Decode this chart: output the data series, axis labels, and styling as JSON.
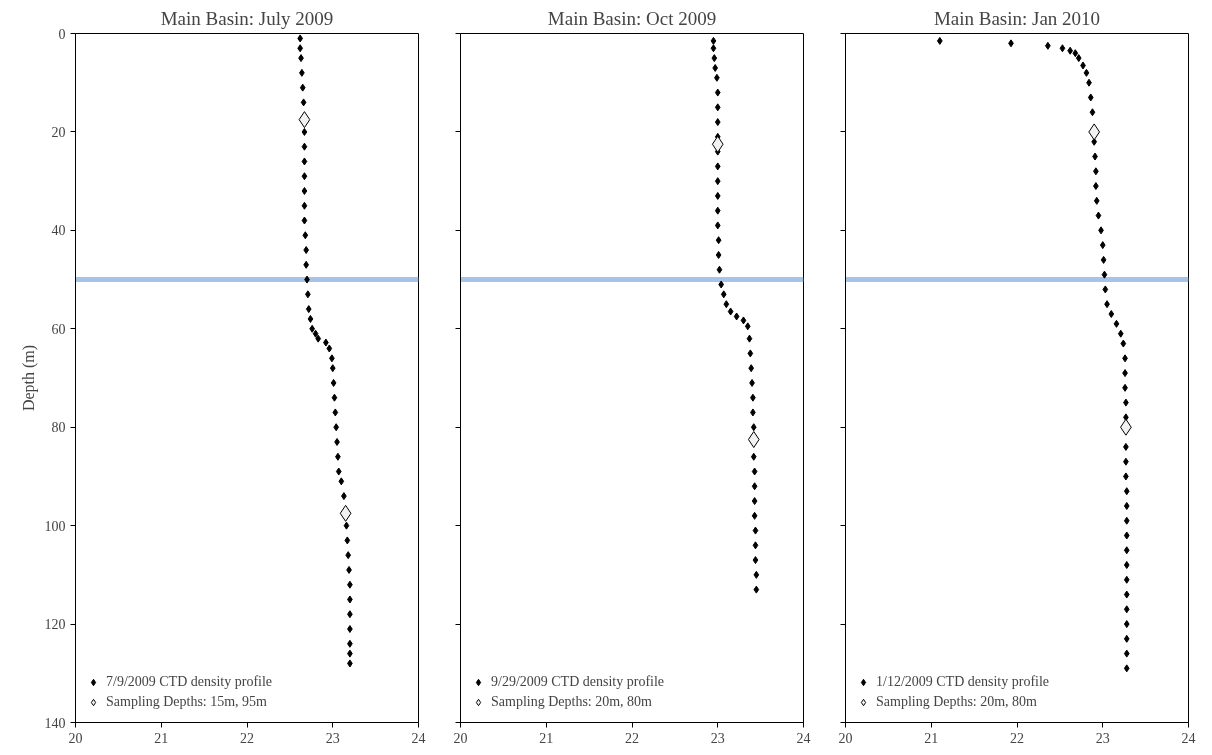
{
  "chart_data": [
    {
      "type": "scatter",
      "title": "Main Basin: July 2009",
      "ylabel": "Depth (m)",
      "xlim": [
        20,
        24
      ],
      "ylim": [
        140,
        0
      ],
      "xticks": [
        20,
        21,
        22,
        23,
        24
      ],
      "yticks": [
        0,
        20,
        40,
        60,
        80,
        100,
        120,
        140
      ],
      "grid": false,
      "legend": "bottom left",
      "ref_lines": [
        {
          "axis": "y",
          "value": 50,
          "color": "#a6c4e8"
        }
      ],
      "series": [
        {
          "name": "7/9/2009 CTD density profile",
          "color": "#000000",
          "marker": "diamond",
          "x": [
            22.62,
            22.62,
            22.63,
            22.64,
            22.65,
            22.66,
            22.67,
            22.67,
            22.67,
            22.67,
            22.67,
            22.67,
            22.67,
            22.68,
            22.69,
            22.69,
            22.7,
            22.71,
            22.72,
            22.74,
            22.76,
            22.8,
            22.83,
            22.92,
            22.96,
            22.99,
            23.0,
            23.01,
            23.02,
            23.03,
            23.04,
            23.05,
            23.06,
            23.07,
            23.1,
            23.13,
            23.16,
            23.17,
            23.18,
            23.19,
            23.2,
            23.2,
            23.2,
            23.2,
            23.2,
            23.2,
            23.2
          ],
          "values": [
            1,
            3,
            5,
            8,
            11,
            14,
            20,
            23,
            26,
            29,
            32,
            35,
            38,
            41,
            44,
            47,
            50,
            53,
            56,
            58,
            60,
            61,
            62,
            62.8,
            64,
            66,
            68,
            71,
            74,
            77,
            80,
            83,
            86,
            89,
            91,
            94,
            100,
            103,
            106,
            109,
            112,
            115,
            118,
            121,
            124,
            126,
            128
          ]
        },
        {
          "name": "Sampling Depths: 15m, 95m",
          "color": "#f2f2f2",
          "marker": "diamond",
          "x": [
            22.67,
            23.15
          ],
          "values": [
            17.5,
            97.5
          ]
        }
      ]
    },
    {
      "type": "scatter",
      "title": "Main Basin: Oct 2009",
      "xlim": [
        20,
        24
      ],
      "ylim": [
        140,
        0
      ],
      "xticks": [
        20,
        21,
        22,
        23,
        24
      ],
      "yticks": [
        0,
        20,
        40,
        60,
        80,
        100,
        120,
        140
      ],
      "tick_labels": "x",
      "grid": false,
      "legend": "bottom left",
      "ref_lines": [
        {
          "axis": "y",
          "value": 50,
          "color": "#a6c4e8"
        }
      ],
      "series": [
        {
          "name": "9/29/2009 CTD density profile",
          "color": "#000000",
          "marker": "diamond",
          "x": [
            22.95,
            22.95,
            22.96,
            22.97,
            22.99,
            23.0,
            23.0,
            23.0,
            23.0,
            23.0,
            23.0,
            23.0,
            23.0,
            23.0,
            23.0,
            23.01,
            23.01,
            23.02,
            23.04,
            23.07,
            23.1,
            23.15,
            23.22,
            23.3,
            23.35,
            23.37,
            23.38,
            23.39,
            23.4,
            23.41,
            23.41,
            23.42,
            23.42,
            23.43,
            23.43,
            23.43,
            23.43,
            23.44,
            23.44,
            23.44,
            23.45,
            23.45
          ],
          "values": [
            1.5,
            3,
            5,
            7,
            9,
            12,
            15,
            18,
            21,
            24,
            27,
            30,
            33,
            36,
            39,
            42,
            45,
            48,
            51,
            53,
            55,
            56.5,
            57.5,
            58.3,
            59.5,
            62,
            65,
            68,
            71,
            74,
            77,
            80,
            86,
            89,
            92,
            95,
            98,
            101,
            104,
            107,
            110,
            113
          ]
        },
        {
          "name": "Sampling Depths: 20m, 80m",
          "color": "#f2f2f2",
          "marker": "diamond",
          "x": [
            23.0,
            23.42
          ],
          "values": [
            22.5,
            82.5
          ]
        }
      ]
    },
    {
      "type": "scatter",
      "title": "Main Basin: Jan 2010",
      "xlim": [
        20,
        24
      ],
      "ylim": [
        140,
        0
      ],
      "xticks": [
        20,
        21,
        22,
        23,
        24
      ],
      "yticks": [
        0,
        20,
        40,
        60,
        80,
        100,
        120,
        140
      ],
      "tick_labels": "x",
      "grid": false,
      "legend": "bottom left",
      "ref_lines": [
        {
          "axis": "y",
          "value": 50,
          "color": "#a6c4e8"
        }
      ],
      "series": [
        {
          "name": "1/12/2009 CTD density profile",
          "color": "#000000",
          "marker": "diamond",
          "x": [
            21.1,
            21.93,
            22.36,
            22.53,
            22.62,
            22.68,
            22.72,
            22.77,
            22.81,
            22.84,
            22.86,
            22.88,
            22.9,
            22.91,
            22.92,
            22.92,
            22.93,
            22.95,
            22.98,
            23.0,
            23.01,
            23.02,
            23.03,
            23.05,
            23.1,
            23.16,
            23.21,
            23.24,
            23.26,
            23.26,
            23.26,
            23.27,
            23.27,
            23.27,
            23.27,
            23.27,
            23.28,
            23.28,
            23.28,
            23.28,
            23.28,
            23.28,
            23.28,
            23.28,
            23.28,
            23.28,
            23.28,
            23.28,
            23.28
          ],
          "values": [
            1.5,
            2,
            2.5,
            3,
            3.5,
            4,
            5,
            6.5,
            8,
            10,
            13,
            16,
            22,
            25,
            28,
            31,
            34,
            37,
            40,
            43,
            46,
            49,
            52,
            55,
            57,
            59,
            61,
            63,
            66,
            69,
            72,
            75,
            78,
            84,
            87,
            90,
            93,
            96,
            99,
            102,
            105,
            108,
            111,
            114,
            117,
            120,
            123,
            126,
            129
          ]
        },
        {
          "name": "Sampling Depths: 20m, 80m",
          "color": "#f2f2f2",
          "marker": "diamond",
          "x": [
            22.9,
            23.27
          ],
          "values": [
            20,
            80
          ]
        }
      ]
    }
  ]
}
